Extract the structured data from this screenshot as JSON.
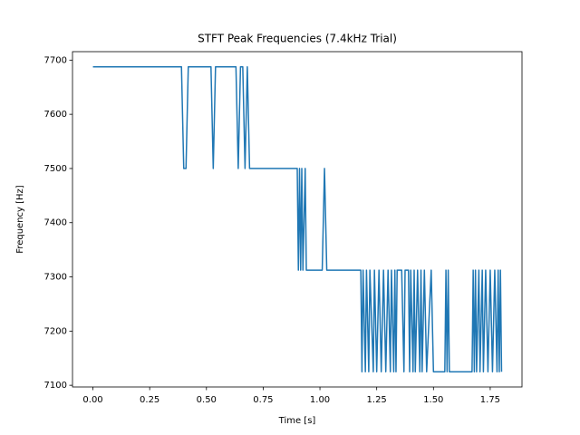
{
  "chart_data": {
    "type": "line",
    "title": "STFT Peak Frequencies (7.4kHz Trial)",
    "x_label": "Time [s]",
    "y_label": "Frequency [Hz]",
    "color": "#1f77b4",
    "x": [
      0,
      0.39,
      0.4,
      0.41,
      0.42,
      0.52,
      0.53,
      0.54,
      0.63,
      0.64,
      0.65,
      0.66,
      0.67,
      0.68,
      0.69,
      0.9,
      0.905,
      0.91,
      0.915,
      0.92,
      0.925,
      0.935,
      0.94,
      1.01,
      1.02,
      1.03,
      1.18,
      1.185,
      1.19,
      1.2,
      1.205,
      1.215,
      1.22,
      1.235,
      1.24,
      1.25,
      1.26,
      1.27,
      1.28,
      1.29,
      1.3,
      1.31,
      1.315,
      1.325,
      1.33,
      1.335,
      1.34,
      1.36,
      1.37,
      1.375,
      1.39,
      1.395,
      1.4,
      1.41,
      1.415,
      1.42,
      1.43,
      1.44,
      1.445,
      1.45,
      1.46,
      1.47,
      1.49,
      1.5,
      1.55,
      1.555,
      1.56,
      1.565,
      1.57,
      1.67,
      1.675,
      1.68,
      1.685,
      1.69,
      1.7,
      1.705,
      1.715,
      1.72,
      1.73,
      1.74,
      1.75,
      1.76,
      1.77,
      1.78,
      1.785,
      1.79,
      1.795,
      1.8
    ],
    "values": [
      7687.5,
      7687.5,
      7500,
      7500,
      7687.5,
      7687.5,
      7500,
      7687.5,
      7687.5,
      7500,
      7687.5,
      7687.5,
      7500,
      7687.5,
      7500,
      7500,
      7312.5,
      7500,
      7312.5,
      7500,
      7312.5,
      7500,
      7312.5,
      7312.5,
      7500,
      7312.5,
      7312.5,
      7125,
      7312.5,
      7125,
      7312.5,
      7125,
      7312.5,
      7125,
      7312.5,
      7125,
      7312.5,
      7125,
      7312.5,
      7125,
      7312.5,
      7125,
      7312.5,
      7125,
      7312.5,
      7125,
      7312.5,
      7312.5,
      7125,
      7312.5,
      7312.5,
      7125,
      7312.5,
      7125,
      7312.5,
      7125,
      7312.5,
      7125,
      7312.5,
      7125,
      7312.5,
      7125,
      7312.5,
      7125,
      7125,
      7312.5,
      7125,
      7312.5,
      7125,
      7125,
      7312.5,
      7125,
      7312.5,
      7125,
      7312.5,
      7125,
      7312.5,
      7125,
      7312.5,
      7125,
      7312.5,
      7125,
      7312.5,
      7125,
      7312.5,
      7125,
      7312.5,
      7125
    ],
    "xlim": [
      -0.09,
      1.89
    ],
    "ylim": [
      7096.9,
      7715.6
    ],
    "xticks": [
      {
        "value": 0,
        "label": "0.00"
      },
      {
        "value": 0.25,
        "label": "0.25"
      },
      {
        "value": 0.5,
        "label": "0.50"
      },
      {
        "value": 0.75,
        "label": "0.75"
      },
      {
        "value": 1,
        "label": "1.00"
      },
      {
        "value": 1.25,
        "label": "1.25"
      },
      {
        "value": 1.5,
        "label": "1.50"
      },
      {
        "value": 1.75,
        "label": "1.75"
      }
    ],
    "yticks": [
      7100,
      7200,
      7300,
      7400,
      7500,
      7600,
      7700
    ]
  }
}
